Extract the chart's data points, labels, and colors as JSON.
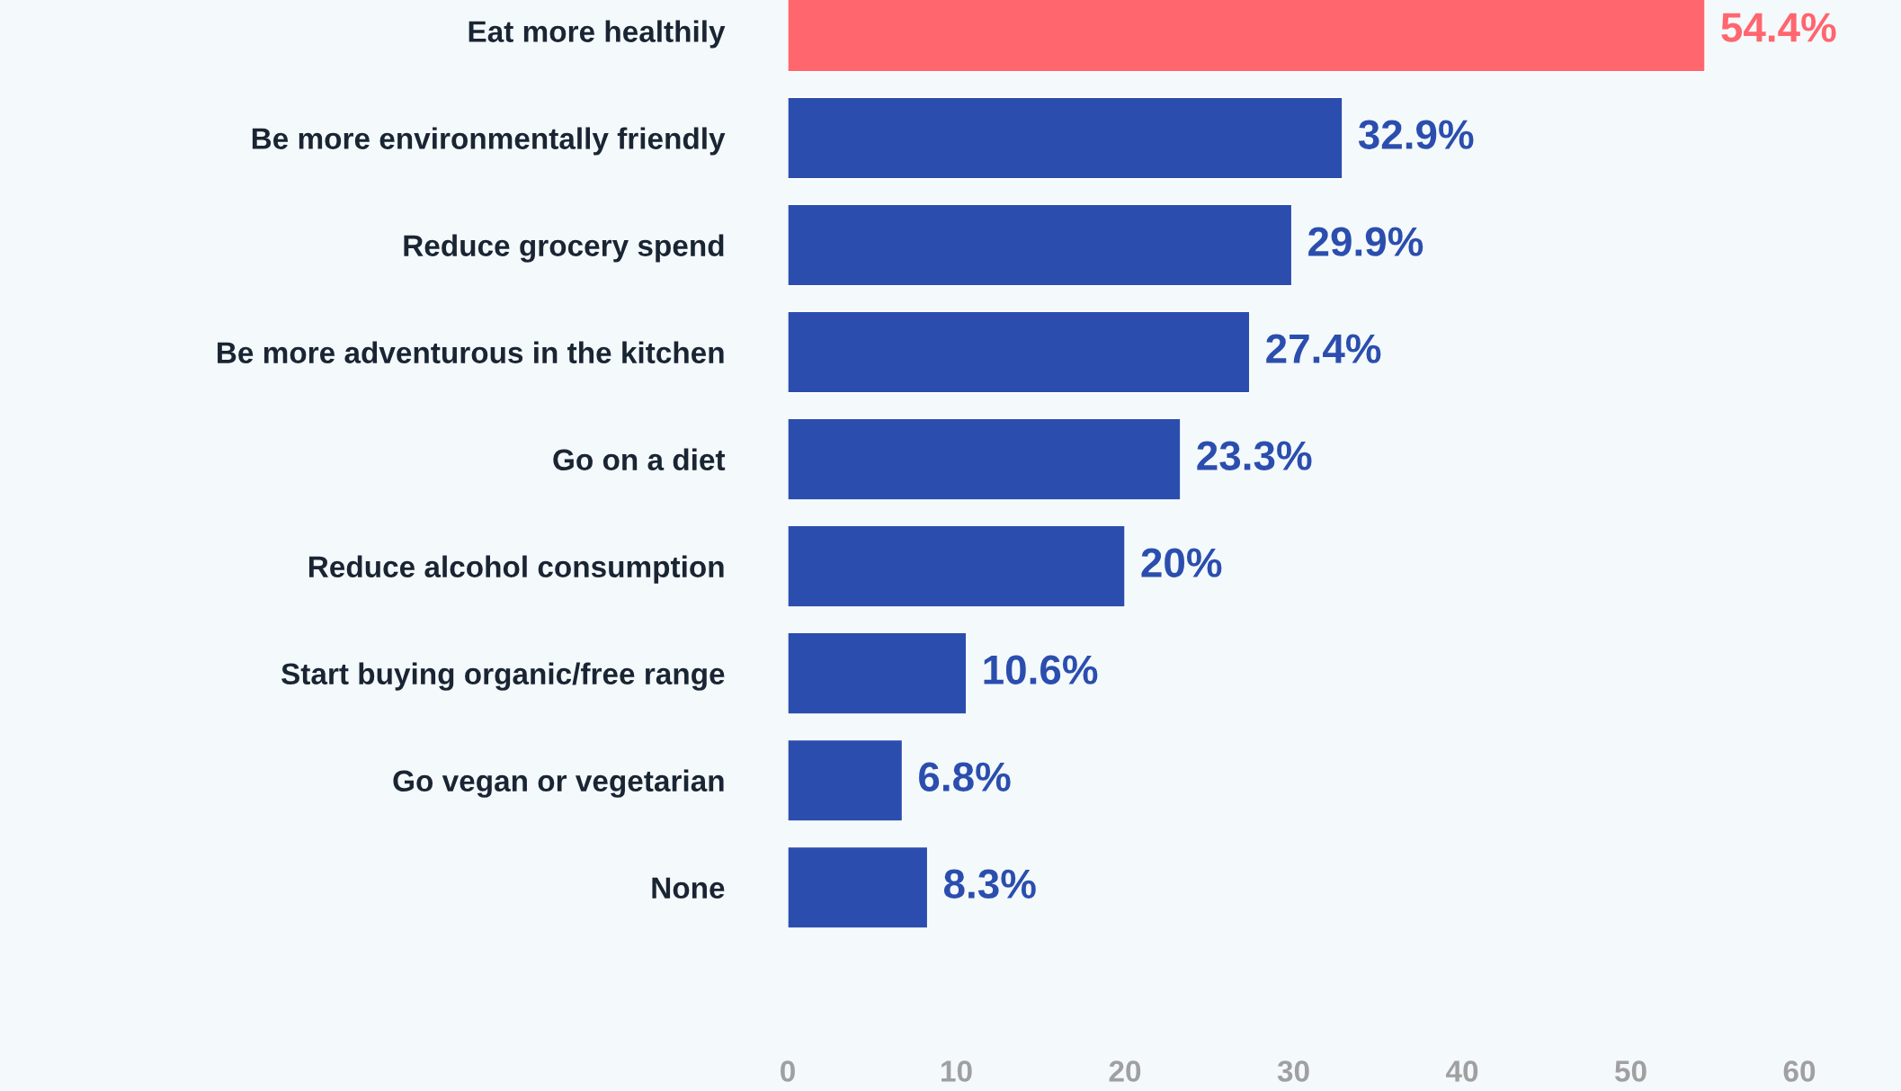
{
  "chart_data": {
    "type": "bar",
    "orientation": "horizontal",
    "categories": [
      "Eat more healthily",
      "Be more environmentally friendly",
      "Reduce grocery spend",
      "Be more adventurous in the kitchen",
      "Go on a diet",
      "Reduce alcohol consumption",
      "Start buying organic/free range",
      "Go vegan or vegetarian",
      "None"
    ],
    "values": [
      54.4,
      32.9,
      29.9,
      27.4,
      23.3,
      20,
      10.6,
      6.8,
      8.3
    ],
    "colors": [
      "#ff666e",
      "#2b4eae",
      "#2b4eae",
      "#2b4eae",
      "#2b4eae",
      "#2b4eae",
      "#2b4eae",
      "#2b4eae",
      "#2b4eae"
    ],
    "value_labels": [
      "54.4%",
      "32.9%",
      "29.9%",
      "27.4%",
      "23.3%",
      "20%",
      "10.6%",
      "6.8%",
      "8.3%"
    ],
    "xlim": [
      0,
      60
    ],
    "xticks": [
      0,
      10,
      20,
      30,
      40,
      50,
      60
    ],
    "grid": false,
    "legend": false
  }
}
